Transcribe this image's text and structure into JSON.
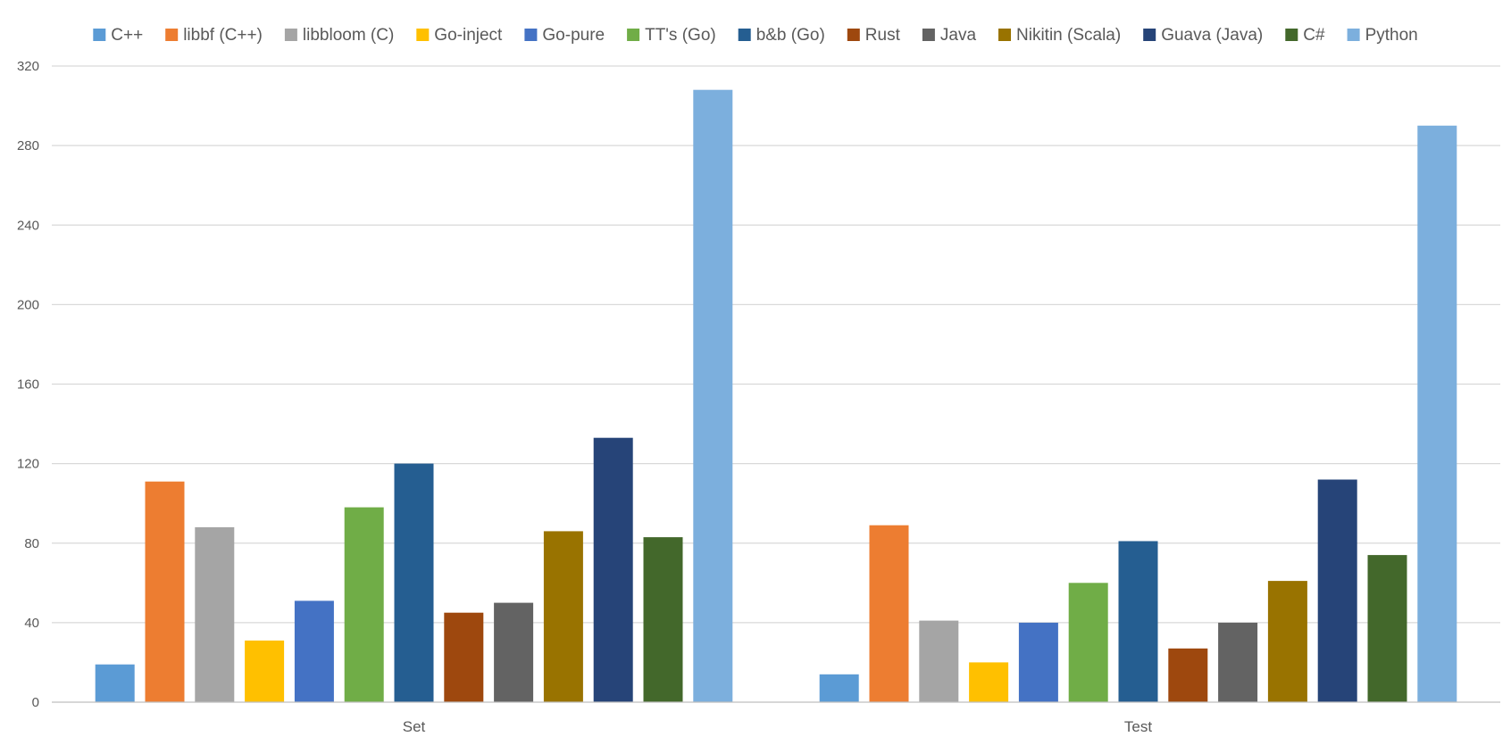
{
  "chart_data": {
    "type": "bar",
    "categories": [
      "Set",
      "Test"
    ],
    "ylim": [
      0,
      320
    ],
    "yticks": [
      0,
      40,
      80,
      120,
      160,
      200,
      240,
      280,
      320
    ],
    "grid": true,
    "legend_position": "top",
    "series": [
      {
        "name": "C++",
        "color": "#5B9BD5",
        "values": [
          19,
          14
        ]
      },
      {
        "name": "libbf (C++)",
        "color": "#ED7D31",
        "values": [
          111,
          89
        ]
      },
      {
        "name": "libbloom (C)",
        "color": "#A5A5A5",
        "values": [
          88,
          41
        ]
      },
      {
        "name": "Go-inject",
        "color": "#FFC000",
        "values": [
          31,
          20
        ]
      },
      {
        "name": "Go-pure",
        "color": "#4472C4",
        "values": [
          51,
          40
        ]
      },
      {
        "name": "TT's (Go)",
        "color": "#70AD47",
        "values": [
          98,
          60
        ]
      },
      {
        "name": "b&b (Go)",
        "color": "#255E91",
        "values": [
          120,
          81
        ]
      },
      {
        "name": "Rust",
        "color": "#9E480E",
        "values": [
          45,
          27
        ]
      },
      {
        "name": "Java",
        "color": "#636363",
        "values": [
          50,
          40
        ]
      },
      {
        "name": "Nikitin (Scala)",
        "color": "#997300",
        "values": [
          86,
          61
        ]
      },
      {
        "name": "Guava (Java)",
        "color": "#264478",
        "values": [
          133,
          112
        ]
      },
      {
        "name": "C#",
        "color": "#43682B",
        "values": [
          83,
          74
        ]
      },
      {
        "name": "Python",
        "color": "#7CAFDD",
        "values": [
          308,
          290
        ]
      }
    ]
  }
}
